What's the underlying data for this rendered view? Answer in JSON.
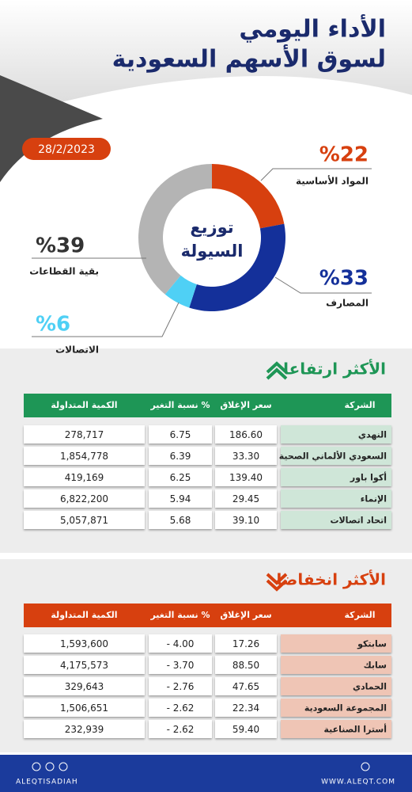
{
  "header": {
    "title_line1": "الأداء اليومي",
    "title_line2": "لسوق الأسهم السعودية",
    "date": "28/2/2023"
  },
  "donut": {
    "center_line1": "توزيع",
    "center_line2": "السيولة",
    "segments": [
      {
        "name": "المواد الأساسية",
        "value": 22,
        "label": "%22",
        "color": "#d7400f"
      },
      {
        "name": "المصارف",
        "value": 33,
        "label": "%33",
        "color": "#14309a"
      },
      {
        "name": "الاتصالات",
        "value": 6,
        "label": "%6",
        "color": "#4fd0f5"
      },
      {
        "name": "بقية القطاعات",
        "value": 39,
        "label": "%39",
        "color": "#b4b4b4"
      }
    ]
  },
  "gainers": {
    "title": "الأكثر ارتفاعا",
    "columns": [
      "الشركة",
      "سعر الإغلاق",
      "نسبة التغير %",
      "الكمية المتداولة"
    ],
    "rows": [
      [
        "النهدي",
        "186.60",
        "6.75",
        "278,717"
      ],
      [
        "السعودي الألماني الصحية",
        "33.30",
        "6.39",
        "1,854,778"
      ],
      [
        "أكوا باور",
        "139.40",
        "6.25",
        "419,169"
      ],
      [
        "الإنماء",
        "29.45",
        "5.94",
        "6,822,200"
      ],
      [
        "اتحاد اتصالات",
        "39.10",
        "5.68",
        "5,057,871"
      ]
    ]
  },
  "losers": {
    "title": "الأكثر انخفاضا",
    "columns": [
      "الشركة",
      "سعر الإغلاق",
      "نسبة التغير %",
      "الكمية المتداولة"
    ],
    "rows": [
      [
        "سابتكو",
        "17.26",
        "- 4.00",
        "1,593,600"
      ],
      [
        "سابك",
        "88.50",
        "- 3.70",
        "4,175,573"
      ],
      [
        "الحمادي",
        "47.65",
        "- 2.76",
        "329,643"
      ],
      [
        "المجموعة السعودية",
        "22.34",
        "- 2.62",
        "1,506,651"
      ],
      [
        "أسترا الصناعية",
        "59.40",
        "- 2.62",
        "232,939"
      ]
    ]
  },
  "footer": {
    "left": "ALEQTISADIAH",
    "right": "WWW.ALEQT.COM"
  }
}
